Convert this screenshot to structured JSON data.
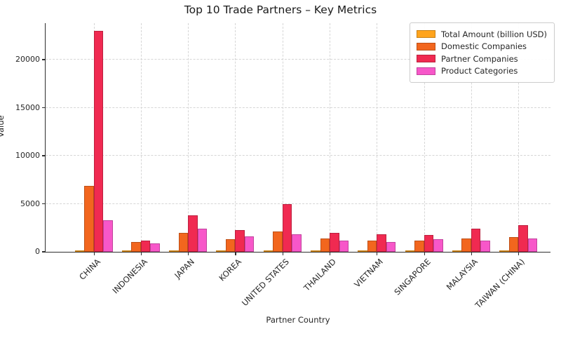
{
  "chart_data": {
    "type": "bar",
    "title": "Top 10 Trade Partners – Key Metrics",
    "xlabel": "Partner Country",
    "ylabel": "Value",
    "categories": [
      "CHINA",
      "INDONESIA",
      "JAPAN",
      "KOREA",
      "UNITED STATES",
      "THAILAND",
      "VIETNAM",
      "SINGAPORE",
      "MALAYSIA",
      "TAIWAN (CHINA)"
    ],
    "series": [
      {
        "name": "Total Amount (billion USD)",
        "color": "#FFA41D",
        "values": [
          150,
          30,
          60,
          50,
          80,
          25,
          30,
          30,
          25,
          30
        ]
      },
      {
        "name": "Domestic Companies",
        "color": "#F2661E",
        "values": [
          6900,
          1000,
          2000,
          1300,
          2100,
          1400,
          1150,
          1150,
          1400,
          1500
        ]
      },
      {
        "name": "Partner Companies",
        "color": "#F02A51",
        "values": [
          23000,
          1150,
          3800,
          2250,
          5000,
          2000,
          1850,
          1750,
          2400,
          2800
        ]
      },
      {
        "name": "Product Categories",
        "color": "#F757C9",
        "values": [
          3250,
          850,
          2400,
          1600,
          1800,
          1200,
          1000,
          1280,
          1150,
          1400
        ]
      }
    ],
    "yticks": [
      0,
      5000,
      10000,
      15000,
      20000
    ],
    "ylim": [
      0,
      23800
    ],
    "grid": true,
    "legend_position": "upper right"
  }
}
